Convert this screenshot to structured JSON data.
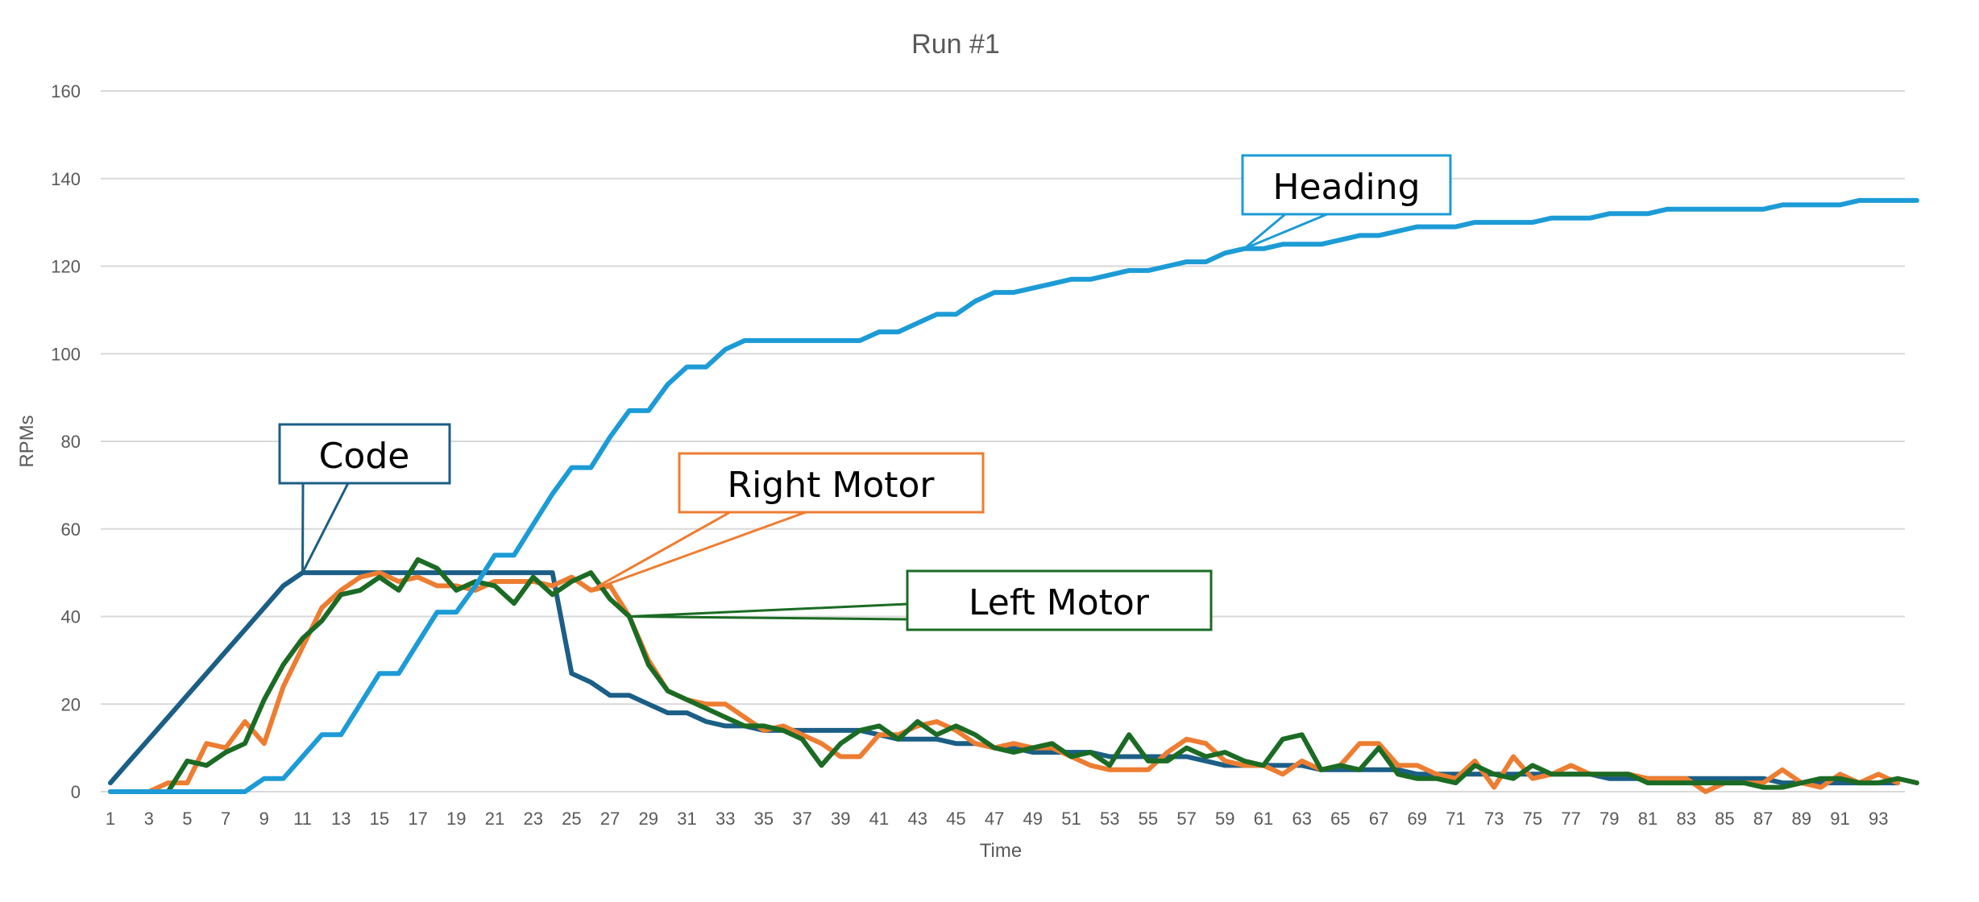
{
  "chart_data": {
    "type": "line",
    "title": "Run #1",
    "xlabel": "Time",
    "ylabel": "RPMs",
    "ylim": [
      0,
      160
    ],
    "yticks": [
      0,
      20,
      40,
      60,
      80,
      100,
      120,
      140,
      160
    ],
    "xlim": [
      1,
      94
    ],
    "xtick_labels": [
      "1",
      "3",
      "5",
      "7",
      "9",
      "11",
      "13",
      "15",
      "17",
      "19",
      "21",
      "23",
      "25",
      "27",
      "29",
      "31",
      "33",
      "35",
      "37",
      "39",
      "41",
      "43",
      "45",
      "47",
      "49",
      "51",
      "53",
      "55",
      "57",
      "59",
      "61",
      "63",
      "65",
      "67",
      "69",
      "71",
      "73",
      "75",
      "77",
      "79",
      "81",
      "83",
      "85",
      "87",
      "89",
      "91",
      "93"
    ],
    "grid": true,
    "legend": "none",
    "series": [
      {
        "name": "Code",
        "color": "#1b5e86",
        "values": [
          2,
          7,
          12,
          17,
          22,
          27,
          32,
          37,
          42,
          47,
          50,
          50,
          50,
          50,
          50,
          50,
          50,
          50,
          50,
          50,
          50,
          50,
          50,
          50,
          27,
          25,
          22,
          22,
          20,
          18,
          18,
          16,
          15,
          15,
          14,
          14,
          14,
          14,
          14,
          14,
          13,
          12,
          12,
          12,
          11,
          11,
          10,
          10,
          9,
          9,
          9,
          9,
          8,
          8,
          8,
          8,
          8,
          7,
          6,
          6,
          6,
          6,
          6,
          5,
          5,
          5,
          5,
          5,
          4,
          4,
          4,
          4,
          4,
          4,
          4,
          4,
          4,
          4,
          3,
          3,
          3,
          3,
          3,
          3,
          3,
          3,
          3,
          2,
          2,
          2,
          2,
          2,
          2,
          2
        ]
      },
      {
        "name": "Right Motor",
        "color": "#ed7d31",
        "values": [
          0,
          0,
          0,
          2,
          2,
          11,
          10,
          16,
          11,
          24,
          33,
          42,
          46,
          49,
          50,
          48,
          49,
          47,
          47,
          46,
          48,
          48,
          48,
          47,
          49,
          46,
          47,
          40,
          30,
          23,
          21,
          20,
          20,
          17,
          14,
          15,
          13,
          11,
          8,
          8,
          13,
          13,
          15,
          16,
          14,
          11,
          10,
          11,
          10,
          10,
          8,
          6,
          5,
          5,
          5,
          9,
          12,
          11,
          7,
          6,
          6,
          4,
          7,
          5,
          6,
          11,
          11,
          6,
          6,
          4,
          3,
          7,
          1,
          8,
          3,
          4,
          6,
          4,
          4,
          4,
          3,
          3,
          3,
          0,
          2,
          2,
          2,
          5,
          2,
          1,
          4,
          2,
          4,
          2
        ]
      },
      {
        "name": "Left Motor",
        "color": "#1b6b24",
        "values": [
          0,
          0,
          0,
          0,
          7,
          6,
          9,
          11,
          21,
          29,
          35,
          39,
          45,
          46,
          49,
          46,
          53,
          51,
          46,
          48,
          47,
          43,
          49,
          45,
          48,
          50,
          44,
          40,
          29,
          23,
          21,
          19,
          17,
          15,
          15,
          14,
          12,
          6,
          11,
          14,
          15,
          12,
          16,
          13,
          15,
          13,
          10,
          9,
          10,
          11,
          8,
          9,
          6,
          13,
          7,
          7,
          10,
          8,
          9,
          7,
          6,
          12,
          13,
          5,
          6,
          5,
          10,
          4,
          3,
          3,
          2,
          6,
          4,
          3,
          6,
          4,
          4,
          4,
          4,
          4,
          2,
          2,
          2,
          2,
          2,
          2,
          1,
          1,
          2,
          3,
          3,
          2,
          2,
          3,
          2
        ]
      },
      {
        "name": "Heading",
        "color": "#1c9bd6",
        "values": [
          0,
          0,
          0,
          0,
          0,
          0,
          0,
          0,
          3,
          3,
          8,
          13,
          13,
          20,
          27,
          27,
          34,
          41,
          41,
          47,
          54,
          54,
          61,
          68,
          74,
          74,
          81,
          87,
          87,
          93,
          97,
          97,
          101,
          103,
          103,
          103,
          103,
          103,
          103,
          103,
          105,
          105,
          107,
          109,
          109,
          112,
          114,
          114,
          115,
          116,
          117,
          117,
          118,
          119,
          119,
          120,
          121,
          121,
          123,
          124,
          124,
          125,
          125,
          125,
          126,
          127,
          127,
          128,
          129,
          129,
          129,
          130,
          130,
          130,
          130,
          131,
          131,
          131,
          132,
          132,
          132,
          133,
          133,
          133,
          133,
          133,
          133,
          134,
          134,
          134,
          134,
          135,
          135,
          135,
          135
        ]
      }
    ],
    "callouts": [
      {
        "text": "Code",
        "series": 0,
        "point_x": 11
      },
      {
        "text": "Right Motor",
        "series": 1,
        "point_x": 26
      },
      {
        "text": "Left Motor",
        "series": 2,
        "point_x": 28
      },
      {
        "text": "Heading",
        "series": 3,
        "point_x": 60
      }
    ]
  }
}
